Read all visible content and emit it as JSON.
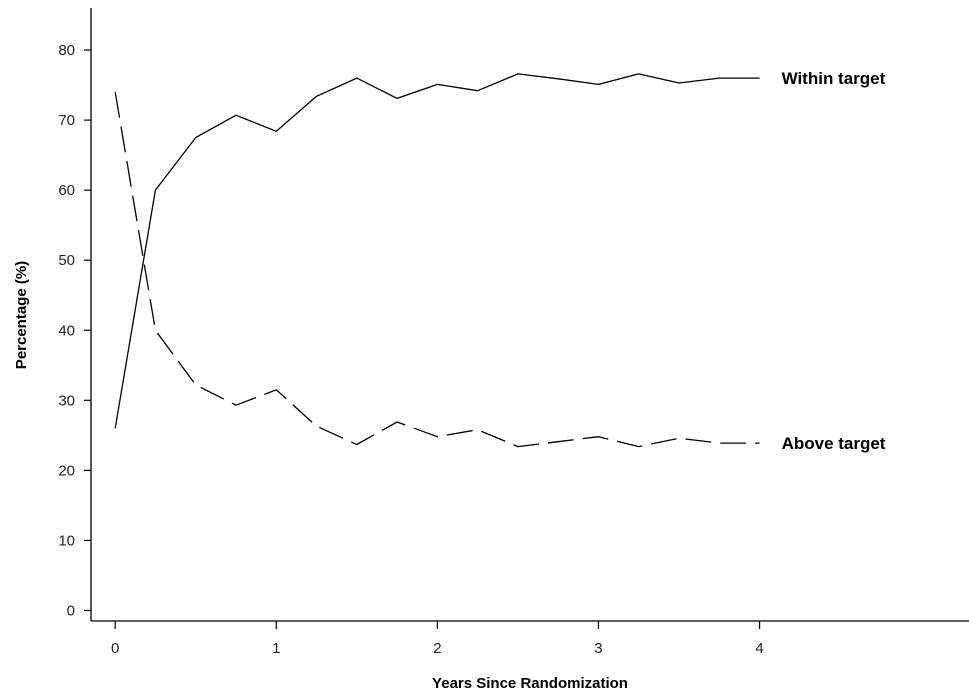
{
  "chart_data": {
    "type": "line",
    "title": "",
    "xlabel": "Years Since Randomization",
    "ylabel": "Percentage (%)",
    "xlim": [
      -0.15,
      5.3
    ],
    "ylim": [
      -1.5,
      86
    ],
    "xticks": [
      0,
      1,
      2,
      3,
      4
    ],
    "yticks": [
      0,
      10,
      20,
      30,
      40,
      50,
      60,
      70,
      80
    ],
    "grid": false,
    "legend": "none",
    "series": [
      {
        "name": "Within target",
        "line_style": "solid",
        "color": "#000000",
        "x": [
          0,
          0.25,
          0.5,
          0.75,
          1,
          1.25,
          1.5,
          1.75,
          2,
          2.25,
          2.5,
          2.75,
          3,
          3.25,
          3.5,
          3.75,
          4
        ],
        "y": [
          26,
          60,
          67.5,
          70.7,
          68.4,
          73.4,
          76,
          73.1,
          75.1,
          74.2,
          76.6,
          75.9,
          75.1,
          76.6,
          75.3,
          76,
          76
        ]
      },
      {
        "name": "Above target",
        "line_style": "dashed",
        "color": "#000000",
        "x": [
          0,
          0.25,
          0.5,
          0.75,
          1,
          1.25,
          1.5,
          1.75,
          2,
          2.25,
          2.5,
          2.75,
          3,
          3.25,
          3.5,
          3.75,
          4
        ],
        "y": [
          74,
          40,
          32.2,
          29.3,
          31.5,
          26.3,
          23.7,
          26.9,
          24.8,
          25.8,
          23.4,
          24.1,
          24.8,
          23.4,
          24.6,
          23.9,
          23.9
        ]
      }
    ]
  }
}
